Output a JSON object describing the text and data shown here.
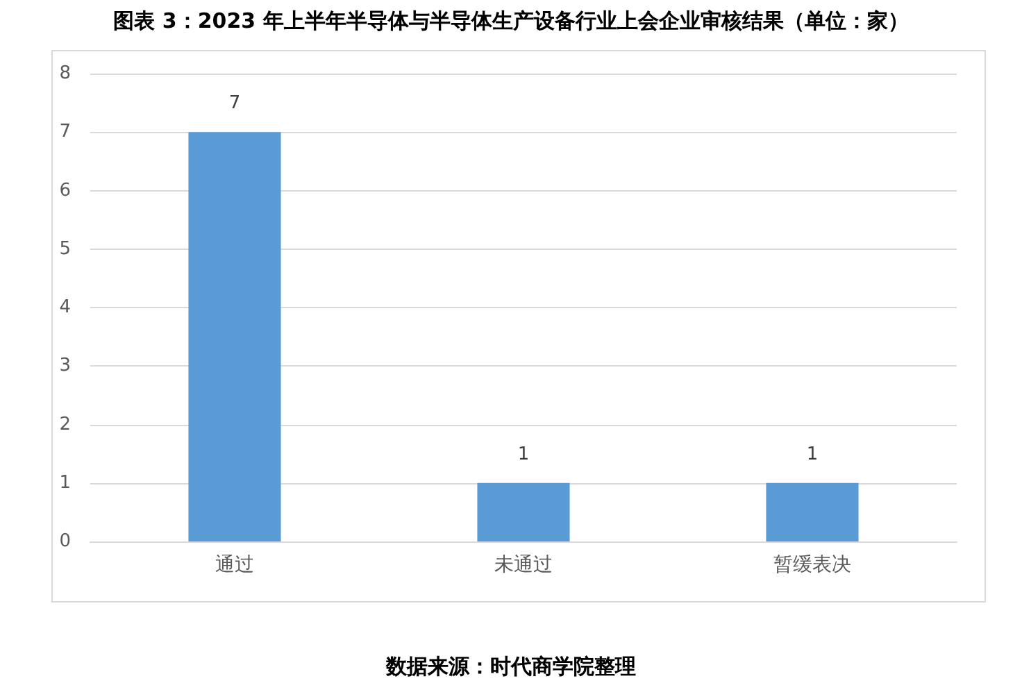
{
  "chart_data": {
    "type": "bar",
    "title": "图表 3：2023 年上半年半导体与半导体生产设备行业上会企业审核结果（单位：家）",
    "categories": [
      "通过",
      "未通过",
      "暂缓表决"
    ],
    "values": [
      7,
      1,
      1
    ],
    "color": "#5b9bd5",
    "ylim": [
      0,
      8
    ],
    "yticks": [
      0,
      1,
      2,
      3,
      4,
      5,
      6,
      7,
      8
    ],
    "grid": "y",
    "data_labels": true,
    "annotations": [
      "数据来源：时代商学院整理"
    ]
  }
}
